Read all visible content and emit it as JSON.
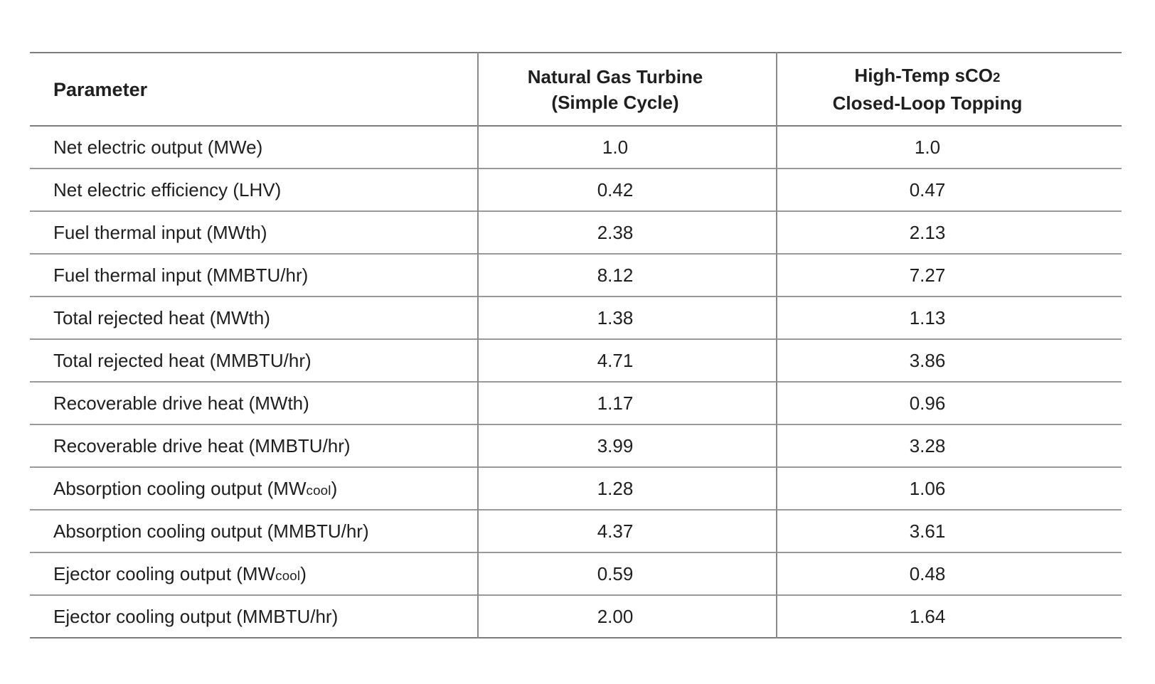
{
  "page": {
    "background": "#ffffff"
  },
  "colors": {
    "text": "#1f1f1f",
    "grid_line": "#8a8a8a",
    "outer_rule": "#7d7d7d"
  },
  "table": {
    "columns": [
      {
        "label": "Parameter"
      },
      {
        "line1": "Natural Gas Turbine",
        "line2": "(Simple Cycle)"
      },
      {
        "line1_pre": "High-Temp sCO",
        "line1_sub": "2",
        "line2": "Closed-Loop Topping"
      }
    ],
    "rows": [
      {
        "param_pre": "Net electric output (MWe)",
        "param_sub": "",
        "param_post": "",
        "ngt": "1.0",
        "sco2": "1.0"
      },
      {
        "param_pre": "Net electric efficiency (LHV)",
        "param_sub": "",
        "param_post": "",
        "ngt": "0.42",
        "sco2": "0.47"
      },
      {
        "param_pre": "Fuel thermal input (MWth)",
        "param_sub": "",
        "param_post": "",
        "ngt": "2.38",
        "sco2": "2.13"
      },
      {
        "param_pre": "Fuel thermal input (MMBTU/hr)",
        "param_sub": "",
        "param_post": "",
        "ngt": "8.12",
        "sco2": "7.27"
      },
      {
        "param_pre": "Total rejected heat (MWth)",
        "param_sub": "",
        "param_post": "",
        "ngt": "1.38",
        "sco2": "1.13"
      },
      {
        "param_pre": "Total rejected heat (MMBTU/hr)",
        "param_sub": "",
        "param_post": "",
        "ngt": "4.71",
        "sco2": "3.86"
      },
      {
        "param_pre": "Recoverable drive heat (MWth)",
        "param_sub": "",
        "param_post": "",
        "ngt": "1.17",
        "sco2": "0.96"
      },
      {
        "param_pre": "Recoverable drive heat (MMBTU/hr)",
        "param_sub": "",
        "param_post": "",
        "ngt": "3.99",
        "sco2": "3.28"
      },
      {
        "param_pre": "Absorption cooling output (MW",
        "param_sub": "cool",
        "param_post": ")",
        "ngt": "1.28",
        "sco2": "1.06"
      },
      {
        "param_pre": "Absorption cooling output (MMBTU/hr)",
        "param_sub": "",
        "param_post": "",
        "ngt": "4.37",
        "sco2": "3.61"
      },
      {
        "param_pre": "Ejector cooling output (MW",
        "param_sub": "cool",
        "param_post": ")",
        "ngt": "0.59",
        "sco2": "0.48"
      },
      {
        "param_pre": "Ejector cooling output (MMBTU/hr)",
        "param_sub": "",
        "param_post": "",
        "ngt": "2.00",
        "sco2": "1.64"
      }
    ]
  }
}
